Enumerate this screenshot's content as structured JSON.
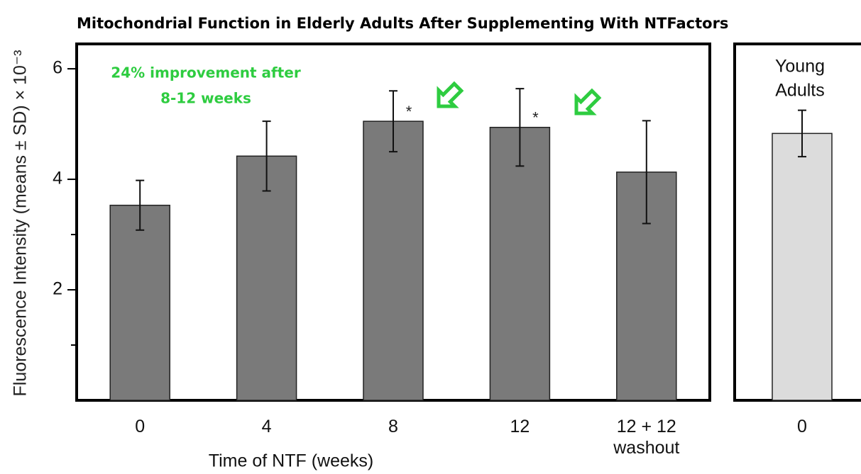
{
  "title": "Mitochondrial Function in Elderly Adults After Supplementing With NTFactors",
  "y_label": "Fluorescence Intensity (means ± SD) × 10⁻³",
  "chart_data": [
    {
      "type": "bar",
      "categories": [
        "0",
        "4",
        "8",
        "12",
        "12 + 12 washout"
      ],
      "values": [
        3.53,
        4.42,
        5.05,
        4.94,
        4.13
      ],
      "errors": [
        0.45,
        0.63,
        0.55,
        0.7,
        0.93
      ],
      "markers": [
        null,
        null,
        "*",
        "*",
        null
      ],
      "color": "#7a7a7a",
      "x_label": "Time of NTF (weeks)",
      "annotation": [
        "24% improvement after",
        "8-12 weeks"
      ],
      "annotation_color": "#2ecc40",
      "ylim": [
        0,
        6.45
      ],
      "yticks": [
        2,
        4,
        6
      ],
      "yminor_ticks": [
        1,
        3
      ]
    },
    {
      "type": "bar",
      "categories": [
        "0"
      ],
      "values": [
        4.83
      ],
      "errors": [
        0.42
      ],
      "color": "#dcdcdc",
      "label": [
        "Young",
        "Adults"
      ],
      "ylim": [
        0,
        6.45
      ]
    }
  ]
}
